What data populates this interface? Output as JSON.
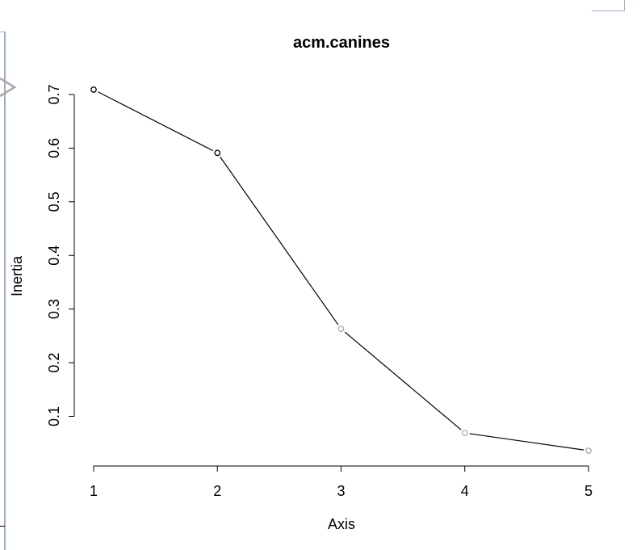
{
  "chart_data": {
    "type": "line",
    "title": "acm.canines",
    "xlabel": "Axis",
    "ylabel": "Inertia",
    "x": [
      1,
      2,
      3,
      4,
      5
    ],
    "values": [
      0.709,
      0.591,
      0.263,
      0.069,
      0.036
    ],
    "point_colors": [
      "#000000",
      "#000000",
      "#a9a9a9",
      "#a9a9a9",
      "#a9a9a9"
    ],
    "x_ticks": [
      "1",
      "2",
      "3",
      "4",
      "5"
    ],
    "y_ticks": [
      "0.1",
      "0.2",
      "0.3",
      "0.4",
      "0.5",
      "0.6",
      "0.7"
    ],
    "y_tick_values": [
      0.1,
      0.2,
      0.3,
      0.4,
      0.5,
      0.6,
      0.7
    ],
    "xlim": [
      1,
      5
    ],
    "ylim": [
      0.036,
      0.709
    ],
    "grid": false,
    "legend": "none",
    "line_color": "#000000"
  }
}
